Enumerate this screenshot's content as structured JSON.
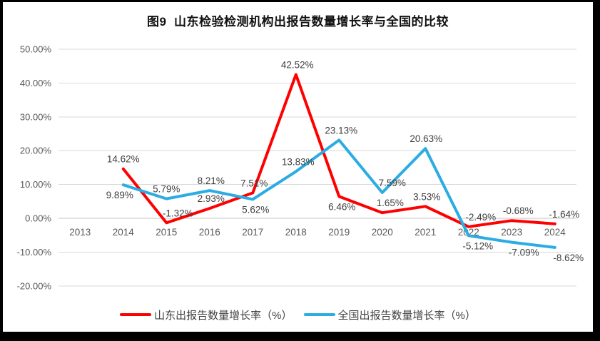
{
  "title": "图9  山东检验检测机构出报告数量增长率与全国的比较",
  "legend": {
    "items": [
      {
        "label": "山东出报告数量增长率（%）",
        "color": "#ff0000"
      },
      {
        "label": "全国出报告数量增长率（%）",
        "color": "#2bace2"
      }
    ],
    "position": "bottom"
  },
  "chart_data": {
    "type": "line",
    "title": "图9  山东检验检测机构出报告数量增长率与全国的比较",
    "categories": [
      "2013",
      "2014",
      "2015",
      "2016",
      "2017",
      "2018",
      "2019",
      "2020",
      "2021",
      "2022",
      "2023",
      "2024"
    ],
    "series": [
      {
        "name": "山东出报告数量增长率（%）",
        "color": "#ff0000",
        "values": [
          null,
          14.62,
          -1.32,
          2.93,
          7.51,
          42.52,
          6.46,
          1.65,
          3.53,
          -2.49,
          -0.68,
          -1.64
        ],
        "labels": [
          "",
          "14.62%",
          "-1.32%",
          "2.93%",
          "7.51%",
          "42.52%",
          "6.46%",
          "1.65%",
          "3.53%",
          "-2.49%",
          "-0.68%",
          "-1.64%"
        ],
        "label_pos": [
          null,
          "above",
          "above",
          "above",
          "above",
          "above",
          "below",
          "above",
          "above",
          "above",
          "above",
          "above"
        ],
        "label_dx": [
          0,
          0,
          16,
          2,
          2,
          2,
          4,
          11,
          2,
          17,
          9,
          13
        ]
      },
      {
        "name": "全国出报告数量增长率（%）",
        "color": "#2bace2",
        "values": [
          null,
          9.89,
          5.79,
          8.21,
          5.62,
          13.83,
          23.13,
          7.59,
          20.63,
          -5.12,
          -7.09,
          -8.62
        ],
        "labels": [
          "",
          "9.89%",
          "5.79%",
          "8.21%",
          "5.62%",
          "13.83%",
          "23.13%",
          "7.59%",
          "20.63%",
          "-5.12%",
          "-7.09%",
          "-8.62%"
        ],
        "label_pos": [
          null,
          "below",
          "above",
          "above",
          "below",
          "above",
          "above",
          "above",
          "above",
          "below",
          "below",
          "below"
        ],
        "label_dx": [
          0,
          -5,
          0,
          2,
          4,
          3,
          3,
          14,
          1,
          13,
          17,
          19
        ]
      }
    ],
    "y_axis": {
      "min": -20,
      "max": 50,
      "step": 10,
      "ticks": [
        "50.00%",
        "40.00%",
        "30.00%",
        "20.00%",
        "10.00%",
        "0.00%",
        "-10.00%",
        "-20.00%"
      ]
    },
    "grid": true,
    "legend_position": "bottom",
    "ylabel": "",
    "xlabel": ""
  }
}
